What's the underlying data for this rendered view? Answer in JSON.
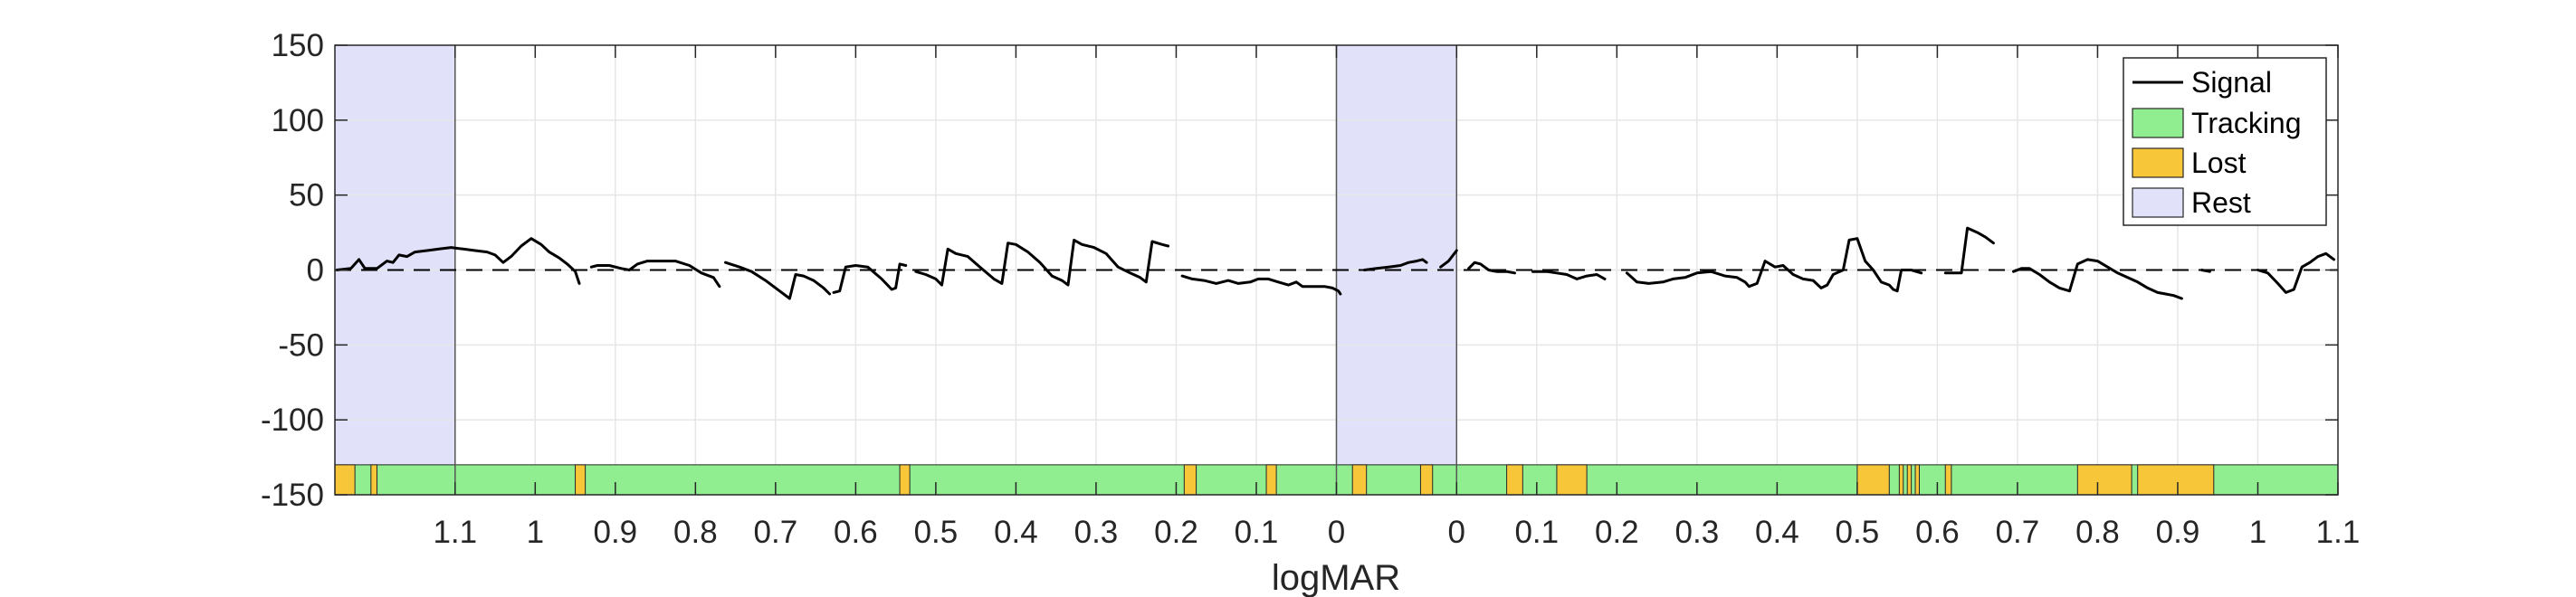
{
  "colors": {
    "tracking": "#90EE90",
    "lost": "#F8C639",
    "rest": "#E1E1FA",
    "signal": "#000000",
    "grid": "#E6E6E6",
    "axis": "#262626"
  },
  "chart_data": {
    "type": "line",
    "xlabel": "logMAR",
    "ylabel": "",
    "ylim": [
      -150,
      150
    ],
    "xlim": [
      0,
      100
    ],
    "y_ticks": [
      150,
      100,
      50,
      0,
      -50,
      -100,
      -150
    ],
    "grid": true,
    "legend_position": "top-right",
    "legend": [
      {
        "label": "Signal",
        "kind": "line",
        "color": "#000000"
      },
      {
        "label": "Tracking",
        "kind": "patch",
        "color": "#90EE90"
      },
      {
        "label": "Lost",
        "kind": "patch",
        "color": "#F8C639"
      },
      {
        "label": "Rest",
        "kind": "patch",
        "color": "#E1E1FA"
      }
    ],
    "x_ticks": [
      {
        "x": 6.0,
        "label": "1.1"
      },
      {
        "x": 10.0,
        "label": "1"
      },
      {
        "x": 14.0,
        "label": "0.9"
      },
      {
        "x": 18.0,
        "label": "0.8"
      },
      {
        "x": 22.0,
        "label": "0.7"
      },
      {
        "x": 26.0,
        "label": "0.6"
      },
      {
        "x": 30.0,
        "label": "0.5"
      },
      {
        "x": 34.0,
        "label": "0.4"
      },
      {
        "x": 38.0,
        "label": "0.3"
      },
      {
        "x": 42.0,
        "label": "0.2"
      },
      {
        "x": 46.0,
        "label": "0.1"
      },
      {
        "x": 50.0,
        "label": "0"
      },
      {
        "x": 56.0,
        "label": "0"
      },
      {
        "x": 60.0,
        "label": "0.1"
      },
      {
        "x": 64.0,
        "label": "0.2"
      },
      {
        "x": 68.0,
        "label": "0.3"
      },
      {
        "x": 72.0,
        "label": "0.4"
      },
      {
        "x": 76.0,
        "label": "0.5"
      },
      {
        "x": 80.0,
        "label": "0.6"
      },
      {
        "x": 84.0,
        "label": "0.7"
      },
      {
        "x": 88.0,
        "label": "0.8"
      },
      {
        "x": 92.0,
        "label": "0.9"
      },
      {
        "x": 96.0,
        "label": "1"
      },
      {
        "x": 100.0,
        "label": "1.1"
      }
    ],
    "zero_reference_line": 0,
    "section_dividers": [
      6.0,
      50.0,
      56.0
    ],
    "rest_periods": [
      [
        0,
        6.0
      ],
      [
        50.0,
        56.0
      ]
    ],
    "status_band": {
      "y_range": [
        -150,
        -130
      ],
      "lost_intervals": [
        [
          0,
          1.0
        ],
        [
          1.8,
          2.1
        ],
        [
          12.0,
          12.5
        ],
        [
          28.2,
          28.7
        ],
        [
          42.4,
          43.0
        ],
        [
          46.5,
          47.0
        ],
        [
          50.8,
          51.5
        ],
        [
          54.2,
          54.8
        ],
        [
          58.5,
          59.3
        ],
        [
          61.0,
          62.5
        ],
        [
          76.0,
          77.6
        ],
        [
          78.1,
          78.3
        ],
        [
          78.5,
          78.7
        ],
        [
          78.9,
          79.1
        ],
        [
          80.4,
          80.7
        ],
        [
          87.0,
          89.7
        ],
        [
          90.0,
          93.8
        ]
      ]
    },
    "series": [
      {
        "name": "Signal",
        "color": "#000000",
        "segments": [
          [
            [
              0.1,
              0
            ],
            [
              0.8,
              1
            ],
            [
              1.2,
              7
            ],
            [
              1.5,
              1
            ],
            [
              2.1,
              1
            ],
            [
              2.6,
              6
            ],
            [
              2.9,
              5
            ],
            [
              3.2,
              10
            ],
            [
              3.6,
              9
            ],
            [
              4.0,
              12
            ],
            [
              4.6,
              13
            ],
            [
              5.2,
              14
            ],
            [
              5.8,
              15
            ],
            [
              6.4,
              14
            ],
            [
              7.0,
              13
            ],
            [
              7.6,
              12
            ],
            [
              8.0,
              10
            ],
            [
              8.4,
              5
            ],
            [
              8.8,
              9
            ],
            [
              9.3,
              16
            ],
            [
              9.8,
              21
            ],
            [
              10.3,
              17
            ],
            [
              10.7,
              12
            ],
            [
              11.2,
              8
            ],
            [
              11.6,
              4
            ],
            [
              12.0,
              -1
            ],
            [
              12.2,
              -9
            ]
          ],
          [
            [
              12.8,
              2
            ],
            [
              13.1,
              3
            ],
            [
              13.7,
              3
            ],
            [
              14.3,
              1
            ],
            [
              14.7,
              0
            ],
            [
              15.1,
              4
            ],
            [
              15.6,
              6
            ],
            [
              16.2,
              6
            ],
            [
              17.0,
              6
            ],
            [
              17.7,
              3
            ],
            [
              18.3,
              -2
            ],
            [
              18.9,
              -5
            ],
            [
              19.2,
              -11
            ]
          ],
          [
            [
              19.5,
              5
            ],
            [
              20.2,
              2
            ],
            [
              20.8,
              -1
            ],
            [
              21.5,
              -7
            ],
            [
              22.2,
              -14
            ],
            [
              22.7,
              -19
            ],
            [
              23.0,
              -3
            ],
            [
              23.4,
              -4
            ],
            [
              23.9,
              -7
            ],
            [
              24.4,
              -12
            ],
            [
              24.7,
              -16
            ]
          ],
          [
            [
              24.9,
              -15
            ],
            [
              25.2,
              -14
            ],
            [
              25.5,
              2
            ],
            [
              26.0,
              3
            ],
            [
              26.6,
              2
            ],
            [
              27.3,
              -6
            ],
            [
              27.8,
              -13
            ],
            [
              28.0,
              -12
            ],
            [
              28.2,
              4
            ],
            [
              28.5,
              3
            ]
          ],
          [
            [
              29.0,
              -1
            ],
            [
              29.5,
              -3
            ],
            [
              30.0,
              -6
            ],
            [
              30.3,
              -10
            ],
            [
              30.6,
              14
            ],
            [
              31.0,
              11
            ],
            [
              31.6,
              9
            ],
            [
              32.2,
              2
            ],
            [
              32.9,
              -6
            ],
            [
              33.3,
              -9
            ],
            [
              33.6,
              18
            ],
            [
              34.0,
              17
            ],
            [
              34.6,
              12
            ],
            [
              35.2,
              5
            ],
            [
              35.8,
              -4
            ],
            [
              36.3,
              -7
            ],
            [
              36.6,
              -10
            ],
            [
              36.9,
              20
            ],
            [
              37.3,
              17
            ],
            [
              37.9,
              15
            ],
            [
              38.5,
              11
            ],
            [
              39.1,
              2
            ],
            [
              39.7,
              -2
            ],
            [
              40.2,
              -5
            ],
            [
              40.5,
              -8
            ],
            [
              40.8,
              19
            ],
            [
              41.3,
              17
            ],
            [
              41.6,
              16
            ]
          ],
          [
            [
              42.3,
              -4
            ],
            [
              42.8,
              -6
            ],
            [
              43.4,
              -7
            ],
            [
              44.0,
              -9
            ],
            [
              44.6,
              -7
            ],
            [
              45.1,
              -9
            ],
            [
              45.7,
              -8
            ],
            [
              46.1,
              -6
            ],
            [
              46.6,
              -6
            ],
            [
              47.1,
              -8
            ],
            [
              47.6,
              -10
            ],
            [
              48.0,
              -8
            ],
            [
              48.3,
              -11
            ],
            [
              48.8,
              -11
            ],
            [
              49.4,
              -11
            ],
            [
              49.8,
              -12
            ],
            [
              50.1,
              -14
            ],
            [
              50.2,
              -16
            ]
          ],
          [
            [
              51.4,
              0
            ],
            [
              52.0,
              1
            ],
            [
              52.6,
              2
            ],
            [
              53.2,
              3
            ],
            [
              53.6,
              5
            ],
            [
              54.0,
              6
            ],
            [
              54.3,
              7
            ],
            [
              54.5,
              5
            ]
          ],
          [
            [
              55.2,
              2
            ],
            [
              55.6,
              6
            ],
            [
              56.0,
              13
            ]
          ],
          [
            [
              56.6,
              1
            ],
            [
              56.9,
              5
            ],
            [
              57.2,
              4
            ],
            [
              57.6,
              0
            ],
            [
              58.0,
              -1
            ],
            [
              58.5,
              -1
            ],
            [
              58.9,
              -2
            ]
          ],
          [
            [
              59.8,
              -1
            ],
            [
              60.5,
              -1
            ],
            [
              61.0,
              -2
            ],
            [
              61.5,
              -3
            ],
            [
              62.0,
              -6
            ],
            [
              62.5,
              -4
            ],
            [
              63.0,
              -3
            ],
            [
              63.4,
              -6
            ]
          ],
          [
            [
              64.5,
              -2
            ],
            [
              65.0,
              -8
            ],
            [
              65.6,
              -9
            ],
            [
              66.3,
              -8
            ],
            [
              66.8,
              -6
            ],
            [
              67.4,
              -5
            ],
            [
              68.0,
              -2
            ],
            [
              68.7,
              -1
            ],
            [
              69.4,
              -4
            ],
            [
              70.0,
              -5
            ],
            [
              70.4,
              -8
            ],
            [
              70.6,
              -11
            ],
            [
              71.0,
              -9
            ],
            [
              71.4,
              6
            ],
            [
              71.9,
              2
            ],
            [
              72.3,
              3
            ],
            [
              72.8,
              -3
            ],
            [
              73.3,
              -6
            ],
            [
              73.8,
              -7
            ],
            [
              74.2,
              -12
            ],
            [
              74.5,
              -10
            ],
            [
              74.8,
              -3
            ],
            [
              75.3,
              0
            ],
            [
              75.6,
              20
            ],
            [
              76.0,
              21
            ],
            [
              76.4,
              6
            ],
            [
              76.8,
              0
            ],
            [
              77.2,
              -8
            ],
            [
              77.6,
              -10
            ],
            [
              77.8,
              -13
            ],
            [
              78.0,
              -14
            ],
            [
              78.2,
              0
            ],
            [
              78.7,
              0
            ],
            [
              79.2,
              -2
            ]
          ],
          [
            [
              80.4,
              -2
            ],
            [
              80.8,
              -2
            ],
            [
              81.2,
              -2
            ],
            [
              81.5,
              28
            ],
            [
              82.0,
              25
            ],
            [
              82.4,
              22
            ],
            [
              82.8,
              18
            ]
          ],
          [
            [
              83.8,
              -1
            ],
            [
              84.2,
              1
            ],
            [
              84.6,
              1
            ],
            [
              85.1,
              -3
            ],
            [
              85.6,
              -8
            ],
            [
              86.1,
              -12
            ],
            [
              86.6,
              -14
            ],
            [
              87.0,
              4
            ],
            [
              87.5,
              7
            ],
            [
              88.0,
              6
            ],
            [
              88.5,
              2
            ],
            [
              89.0,
              -2
            ],
            [
              89.5,
              -5
            ],
            [
              90.0,
              -8
            ],
            [
              90.5,
              -12
            ],
            [
              91.0,
              -15
            ],
            [
              91.4,
              -16
            ],
            [
              91.8,
              -17
            ],
            [
              92.2,
              -19
            ]
          ],
          [
            [
              93.2,
              0
            ],
            [
              93.6,
              -1
            ]
          ],
          [
            [
              96.0,
              0
            ],
            [
              96.5,
              -2
            ],
            [
              97.0,
              -9
            ],
            [
              97.4,
              -15
            ],
            [
              97.8,
              -13
            ],
            [
              98.2,
              2
            ],
            [
              98.6,
              5
            ],
            [
              99.0,
              9
            ],
            [
              99.4,
              11
            ],
            [
              99.8,
              7
            ],
            [
              100.2,
              4
            ],
            [
              100.6,
              2
            ],
            [
              101.0,
              -3
            ],
            [
              101.5,
              -7
            ],
            [
              102.0,
              -10
            ],
            [
              102.4,
              -12
            ],
            [
              102.8,
              -17
            ],
            [
              103.2,
              -19
            ]
          ]
        ]
      }
    ]
  }
}
